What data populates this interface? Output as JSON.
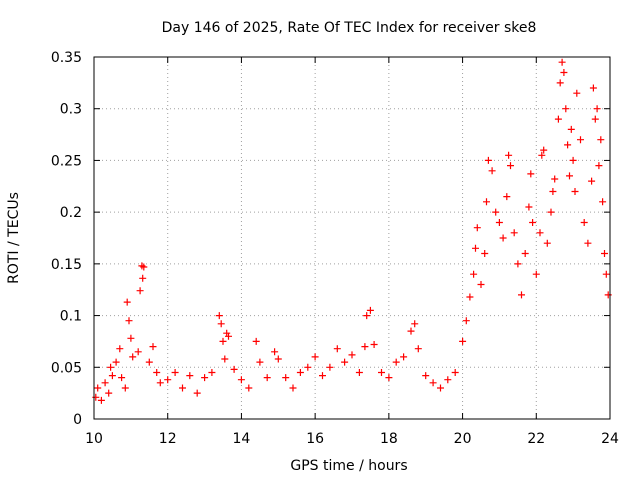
{
  "chart_data": {
    "type": "scatter",
    "title": "Day 146 of 2025, Rate Of TEC Index for receiver ske8",
    "xlabel": "GPS time / hours",
    "ylabel": "ROTI / TECUs",
    "xlim": [
      10,
      24
    ],
    "ylim": [
      0,
      0.35
    ],
    "x_ticks": [
      "10",
      "12",
      "14",
      "16",
      "18",
      "20",
      "22",
      "24"
    ],
    "y_ticks": [
      "0",
      "0.05",
      "0.1",
      "0.15",
      "0.2",
      "0.25",
      "0.3",
      "0.35"
    ],
    "grid": true,
    "marker": "+",
    "marker_color": "#ff0000",
    "series": [
      {
        "name": "ROTI",
        "points": [
          [
            10.05,
            0.021
          ],
          [
            10.1,
            0.03
          ],
          [
            10.2,
            0.018
          ],
          [
            10.3,
            0.035
          ],
          [
            10.4,
            0.025
          ],
          [
            10.45,
            0.05
          ],
          [
            10.5,
            0.042
          ],
          [
            10.6,
            0.055
          ],
          [
            10.7,
            0.068
          ],
          [
            10.75,
            0.04
          ],
          [
            10.85,
            0.03
          ],
          [
            10.9,
            0.113
          ],
          [
            10.95,
            0.095
          ],
          [
            11.0,
            0.078
          ],
          [
            11.05,
            0.06
          ],
          [
            11.2,
            0.065
          ],
          [
            11.25,
            0.124
          ],
          [
            11.3,
            0.148
          ],
          [
            11.32,
            0.136
          ],
          [
            11.35,
            0.147
          ],
          [
            11.5,
            0.055
          ],
          [
            11.6,
            0.07
          ],
          [
            11.7,
            0.045
          ],
          [
            11.8,
            0.035
          ],
          [
            12.0,
            0.038
          ],
          [
            12.2,
            0.045
          ],
          [
            12.4,
            0.03
          ],
          [
            12.6,
            0.042
          ],
          [
            12.8,
            0.025
          ],
          [
            13.0,
            0.04
          ],
          [
            13.2,
            0.045
          ],
          [
            13.4,
            0.1
          ],
          [
            13.45,
            0.092
          ],
          [
            13.5,
            0.075
          ],
          [
            13.55,
            0.058
          ],
          [
            13.6,
            0.083
          ],
          [
            13.65,
            0.08
          ],
          [
            13.8,
            0.048
          ],
          [
            14.0,
            0.038
          ],
          [
            14.2,
            0.03
          ],
          [
            14.4,
            0.075
          ],
          [
            14.5,
            0.055
          ],
          [
            14.7,
            0.04
          ],
          [
            14.9,
            0.065
          ],
          [
            15.0,
            0.058
          ],
          [
            15.2,
            0.04
          ],
          [
            15.4,
            0.03
          ],
          [
            15.6,
            0.045
          ],
          [
            15.8,
            0.05
          ],
          [
            16.0,
            0.06
          ],
          [
            16.2,
            0.042
          ],
          [
            16.4,
            0.05
          ],
          [
            16.6,
            0.068
          ],
          [
            16.8,
            0.055
          ],
          [
            17.0,
            0.062
          ],
          [
            17.2,
            0.045
          ],
          [
            17.35,
            0.07
          ],
          [
            17.4,
            0.1
          ],
          [
            17.5,
            0.105
          ],
          [
            17.6,
            0.072
          ],
          [
            17.8,
            0.045
          ],
          [
            18.0,
            0.04
          ],
          [
            18.2,
            0.055
          ],
          [
            18.4,
            0.06
          ],
          [
            18.6,
            0.085
          ],
          [
            18.7,
            0.092
          ],
          [
            18.8,
            0.068
          ],
          [
            19.0,
            0.042
          ],
          [
            19.2,
            0.035
          ],
          [
            19.4,
            0.03
          ],
          [
            19.6,
            0.038
          ],
          [
            19.8,
            0.045
          ],
          [
            20.0,
            0.075
          ],
          [
            20.1,
            0.095
          ],
          [
            20.2,
            0.118
          ],
          [
            20.3,
            0.14
          ],
          [
            20.35,
            0.165
          ],
          [
            20.4,
            0.185
          ],
          [
            20.5,
            0.13
          ],
          [
            20.6,
            0.16
          ],
          [
            20.65,
            0.21
          ],
          [
            20.7,
            0.25
          ],
          [
            20.8,
            0.24
          ],
          [
            20.9,
            0.2
          ],
          [
            21.0,
            0.19
          ],
          [
            21.1,
            0.175
          ],
          [
            21.2,
            0.215
          ],
          [
            21.25,
            0.255
          ],
          [
            21.3,
            0.245
          ],
          [
            21.4,
            0.18
          ],
          [
            21.5,
            0.15
          ],
          [
            21.6,
            0.12
          ],
          [
            21.7,
            0.16
          ],
          [
            21.8,
            0.205
          ],
          [
            21.85,
            0.237
          ],
          [
            21.9,
            0.19
          ],
          [
            22.0,
            0.14
          ],
          [
            22.1,
            0.18
          ],
          [
            22.15,
            0.255
          ],
          [
            22.2,
            0.26
          ],
          [
            22.3,
            0.17
          ],
          [
            22.4,
            0.2
          ],
          [
            22.45,
            0.22
          ],
          [
            22.5,
            0.232
          ],
          [
            22.6,
            0.29
          ],
          [
            22.65,
            0.325
          ],
          [
            22.7,
            0.345
          ],
          [
            22.75,
            0.335
          ],
          [
            22.8,
            0.3
          ],
          [
            22.85,
            0.265
          ],
          [
            22.9,
            0.235
          ],
          [
            22.95,
            0.28
          ],
          [
            23.0,
            0.25
          ],
          [
            23.05,
            0.22
          ],
          [
            23.1,
            0.315
          ],
          [
            23.2,
            0.27
          ],
          [
            23.3,
            0.19
          ],
          [
            23.4,
            0.17
          ],
          [
            23.5,
            0.23
          ],
          [
            23.55,
            0.32
          ],
          [
            23.6,
            0.29
          ],
          [
            23.65,
            0.3
          ],
          [
            23.7,
            0.245
          ],
          [
            23.75,
            0.27
          ],
          [
            23.8,
            0.21
          ],
          [
            23.85,
            0.16
          ],
          [
            23.9,
            0.14
          ],
          [
            23.95,
            0.12
          ]
        ]
      }
    ]
  }
}
